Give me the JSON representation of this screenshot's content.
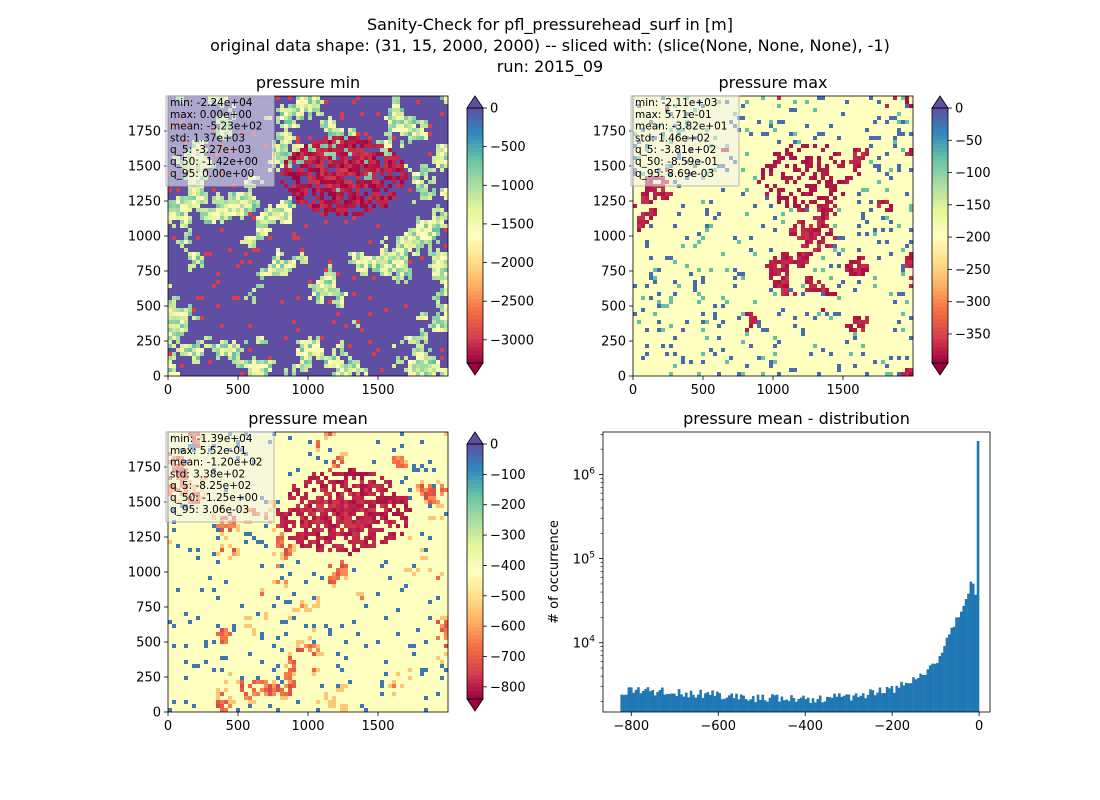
{
  "figure": {
    "title_lines": [
      "Sanity-Check for pfl_pressurehead_surf in [m]",
      "original data shape: (31, 15, 2000, 2000) -- sliced with: (slice(None, None, None), -1)",
      "run: 2015_09"
    ]
  },
  "chart_data": [
    {
      "type": "heatmap",
      "title": "pressure min",
      "colormap": "Spectral",
      "xticks": [
        0,
        500,
        1000,
        1500
      ],
      "yticks": [
        0,
        250,
        500,
        750,
        1000,
        1250,
        1500,
        1750
      ],
      "xlim": [
        0,
        2000
      ],
      "ylim": [
        0,
        2000
      ],
      "clim": [
        -3300,
        0
      ],
      "cbar_ticks": [
        0,
        -500,
        -1000,
        -1500,
        -2000,
        -2500,
        -3000
      ],
      "cbar_extend": "both",
      "stats": [
        "min: -2.24e+04",
        "max: 0.00e+00",
        "mean: -5.23e+02",
        "std: 1.37e+03",
        "q_5: -3.27e+03",
        "q_50: -1.42e+00",
        "q_95: 0.00e+00"
      ]
    },
    {
      "type": "heatmap",
      "title": "pressure max",
      "colormap": "Spectral",
      "xticks": [
        0,
        500,
        1000,
        1500
      ],
      "yticks": [
        0,
        250,
        500,
        750,
        1000,
        1250,
        1500,
        1750
      ],
      "xlim": [
        0,
        2000
      ],
      "ylim": [
        0,
        2000
      ],
      "clim": [
        -395,
        0
      ],
      "cbar_ticks": [
        0,
        -50,
        -100,
        -150,
        -200,
        -250,
        -300,
        -350
      ],
      "cbar_extend": "both",
      "stats": [
        "min: -2.11e+03",
        "max: 5.71e-01",
        "mean: -3.82e+01",
        "std: 1.46e+02",
        "q_5: -3.81e+02",
        "q_50: -8.59e-01",
        "q_95: 8.69e-03"
      ]
    },
    {
      "type": "heatmap",
      "title": "pressure mean",
      "colormap": "Spectral",
      "xticks": [
        0,
        500,
        1000,
        1500
      ],
      "yticks": [
        0,
        250,
        500,
        750,
        1000,
        1250,
        1500,
        1750
      ],
      "xlim": [
        0,
        2000
      ],
      "ylim": [
        0,
        2000
      ],
      "clim": [
        -840,
        0
      ],
      "cbar_ticks": [
        0,
        -100,
        -200,
        -300,
        -400,
        -500,
        -600,
        -700,
        -800
      ],
      "cbar_extend": "both",
      "stats": [
        "min: -1.39e+04",
        "max: 5.52e-01",
        "mean: -1.20e+02",
        "std: 3.38e+02",
        "q_5: -8.25e+02",
        "q_50: -1.25e+00",
        "q_95: 3.06e-03"
      ]
    },
    {
      "type": "bar",
      "title": "pressure mean - distribution",
      "ylabel": "# of occurrence",
      "xlabel": "",
      "yscale": "log",
      "xlim": [
        -865,
        25
      ],
      "ylim": [
        1500,
        3200000
      ],
      "xticks": [
        -800,
        -600,
        -400,
        -200,
        0
      ],
      "yticks": [
        10000,
        100000,
        1000000
      ],
      "ytick_labels": [
        "10^4",
        "10^5",
        "10^6"
      ],
      "bar_color": "#1f77b4",
      "bin_range": [
        -825,
        0
      ],
      "bin_count": 150,
      "anchors": [
        [
          -825,
          2600
        ],
        [
          -780,
          2700
        ],
        [
          -700,
          2600
        ],
        [
          -600,
          2400
        ],
        [
          -500,
          2200
        ],
        [
          -400,
          2150
        ],
        [
          -300,
          2300
        ],
        [
          -250,
          2500
        ],
        [
          -200,
          2800
        ],
        [
          -150,
          3500
        ],
        [
          -120,
          4700
        ],
        [
          -100,
          6000
        ],
        [
          -80,
          9000
        ],
        [
          -60,
          15000
        ],
        [
          -40,
          25000
        ],
        [
          -25,
          40000
        ],
        [
          -15,
          55000
        ],
        [
          -8,
          35000
        ],
        [
          -4,
          100000
        ],
        [
          0,
          2500000
        ]
      ]
    }
  ]
}
